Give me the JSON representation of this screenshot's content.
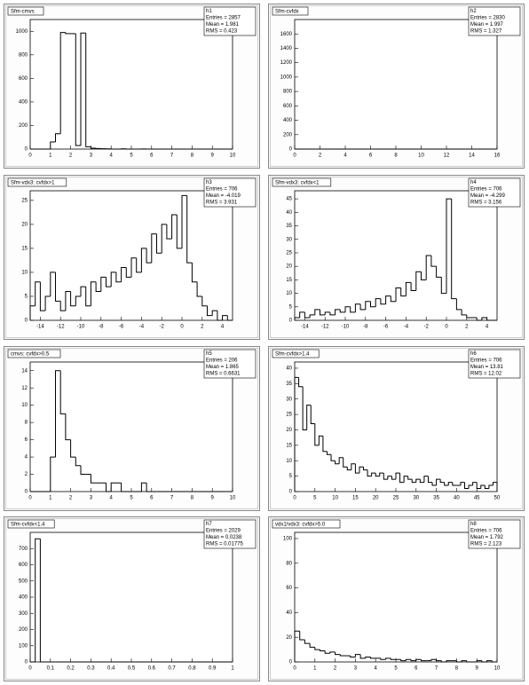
{
  "chart_data": [
    {
      "type": "histogram",
      "title": "Sfm-cmvs",
      "color": "#000000",
      "stats": [
        "h1",
        "Entries = 2857",
        "Mean = 1.981",
        "RMS = 0.423"
      ],
      "bins": [
        0,
        0.25,
        0.5,
        0.75,
        1,
        1.25,
        1.5,
        1.75,
        2,
        2.25,
        2.5,
        2.75,
        3,
        3.25,
        3.5,
        3.75,
        4,
        4.25,
        4.5,
        4.75,
        5,
        5.25,
        5.5,
        5.75,
        6,
        6.25,
        6.5,
        6.75,
        7,
        7.25,
        7.5,
        7.75,
        8,
        8.25,
        8.5,
        8.75,
        9,
        9.25,
        9.5,
        9.75,
        10
      ],
      "values": [
        0,
        0,
        0,
        0,
        60,
        130,
        990,
        980,
        980,
        30,
        985,
        20,
        8,
        5,
        3,
        2,
        0,
        0,
        2,
        0,
        0,
        0,
        1,
        0,
        0,
        0,
        0,
        0,
        0,
        0,
        0,
        0,
        0,
        0,
        0,
        0,
        0,
        0,
        0,
        0
      ],
      "xlim": [
        0,
        10
      ],
      "ylim": [
        0,
        1100
      ],
      "xticks": [
        0,
        1,
        2,
        3,
        4,
        5,
        6,
        7,
        8,
        9,
        10
      ],
      "yticks": [
        0,
        200,
        400,
        600,
        800,
        1000
      ]
    },
    {
      "type": "histogram",
      "title": "Sfm-cvfdx",
      "color": "#000000",
      "stats": [
        "h2",
        "Entries = 2830",
        "Mean = 1.997",
        "RMS = 1.327"
      ],
      "bins": [
        0,
        2,
        4,
        6,
        8,
        10,
        12,
        14,
        16
      ],
      "values": [
        0,
        0,
        0,
        0,
        0,
        0,
        0,
        0
      ],
      "xlim": [
        0,
        16
      ],
      "ylim": [
        0,
        1800
      ],
      "xticks": [
        0,
        2,
        4,
        6,
        8,
        10,
        12,
        14,
        16
      ],
      "yticks": [
        0,
        200,
        400,
        600,
        800,
        1000,
        1200,
        1400,
        1600
      ]
    },
    {
      "type": "histogram",
      "title": "Sfm-vdx3: cvfdx>1",
      "color": "#000000",
      "stats": [
        "h3",
        "Entries = 706",
        "Mean = -4.019",
        "RMS = 3.931"
      ],
      "bins": [
        -15,
        -14.5,
        -14,
        -13.5,
        -13,
        -12.5,
        -12,
        -11.5,
        -11,
        -10.5,
        -10,
        -9.5,
        -9,
        -8.5,
        -8,
        -7.5,
        -7,
        -6.5,
        -6,
        -5.5,
        -5,
        -4.5,
        -4,
        -3.5,
        -3,
        -2.5,
        -2,
        -1.5,
        -1,
        -0.5,
        0,
        0.5,
        1,
        1.5,
        2,
        2.5,
        3,
        3.5,
        4,
        4.5,
        5
      ],
      "values": [
        3,
        8,
        2,
        5,
        10,
        4,
        2,
        6,
        3,
        5,
        7,
        3,
        8,
        6,
        9,
        7,
        10,
        8,
        11,
        9,
        13,
        10,
        15,
        12,
        18,
        14,
        20,
        17,
        22,
        15,
        26,
        12,
        8,
        5,
        3,
        1,
        2,
        0,
        1,
        0
      ],
      "xlim": [
        -15,
        5
      ],
      "ylim": [
        0,
        27
      ],
      "xticks": [
        -14,
        -12,
        -10,
        -8,
        -6,
        -4,
        -2,
        0,
        2,
        4
      ],
      "yticks": [
        0,
        5,
        10,
        15,
        20,
        25
      ]
    },
    {
      "type": "histogram",
      "title": "Sfm-vdx3: cvfdx<1",
      "color": "#000000",
      "stats": [
        "h4",
        "Entries = 706",
        "Mean = -4.299",
        "RMS = 3.156"
      ],
      "bins": [
        -15,
        -14.5,
        -14,
        -13.5,
        -13,
        -12.5,
        -12,
        -11.5,
        -11,
        -10.5,
        -10,
        -9.5,
        -9,
        -8.5,
        -8,
        -7.5,
        -7,
        -6.5,
        -6,
        -5.5,
        -5,
        -4.5,
        -4,
        -3.5,
        -3,
        -2.5,
        -2,
        -1.5,
        -1,
        -0.5,
        0,
        0.5,
        1,
        1.5,
        2,
        2.5,
        3,
        3.5,
        4,
        4.5,
        5
      ],
      "values": [
        1,
        3,
        1,
        2,
        4,
        2,
        3,
        2,
        4,
        3,
        5,
        3,
        6,
        4,
        7,
        5,
        8,
        6,
        9,
        7,
        12,
        9,
        14,
        11,
        18,
        15,
        24,
        20,
        16,
        10,
        45,
        8,
        4,
        2,
        1,
        1,
        0,
        1,
        0,
        0
      ],
      "xlim": [
        -15,
        5
      ],
      "ylim": [
        0,
        48
      ],
      "xticks": [
        -14,
        -12,
        -10,
        -8,
        -6,
        -4,
        -2,
        0,
        2,
        4
      ],
      "yticks": [
        0,
        5,
        10,
        15,
        20,
        25,
        30,
        35,
        40,
        45
      ]
    },
    {
      "type": "histogram",
      "title": "cmvs: cvfdx>0.5",
      "color": "#000000",
      "stats": [
        "h5",
        "Entries = 206",
        "Mean = 1.865",
        "RMS = 0.6631"
      ],
      "bins": [
        0,
        0.25,
        0.5,
        0.75,
        1,
        1.25,
        1.5,
        1.75,
        2,
        2.25,
        2.5,
        2.75,
        3,
        3.25,
        3.5,
        3.75,
        4,
        4.25,
        4.5,
        4.75,
        5,
        5.25,
        5.5,
        5.75,
        6,
        6.25,
        6.5,
        6.75,
        7,
        7.25,
        7.5,
        7.75,
        8,
        8.25,
        8.5,
        8.75,
        9,
        9.25,
        9.5,
        9.75,
        10
      ],
      "values": [
        0,
        0,
        0,
        0,
        4,
        14,
        9,
        6,
        4,
        3,
        2,
        2,
        1,
        1,
        1,
        0,
        1,
        1,
        0,
        0,
        0,
        0,
        1,
        0,
        0,
        0,
        0,
        0,
        0,
        0,
        0,
        0,
        0,
        0,
        0,
        0,
        0,
        0,
        0,
        0
      ],
      "xlim": [
        0,
        10
      ],
      "ylim": [
        0,
        15
      ],
      "xticks": [
        0,
        1,
        2,
        3,
        4,
        5,
        6,
        7,
        8,
        9,
        10
      ],
      "yticks": [
        0,
        2,
        4,
        6,
        8,
        10,
        12,
        14
      ]
    },
    {
      "type": "histogram",
      "title": "Sfm-cvfdx>1.4",
      "color": "#000000",
      "stats": [
        "h6",
        "Entries = 706",
        "Mean = 13.81",
        "RMS = 12.02"
      ],
      "bins": [
        0,
        1,
        2,
        3,
        4,
        5,
        6,
        7,
        8,
        9,
        10,
        11,
        12,
        13,
        14,
        15,
        16,
        17,
        18,
        19,
        20,
        21,
        22,
        23,
        24,
        25,
        26,
        27,
        28,
        29,
        30,
        31,
        32,
        33,
        34,
        35,
        36,
        37,
        38,
        39,
        40,
        41,
        42,
        43,
        44,
        45,
        46,
        47,
        48,
        49,
        50
      ],
      "values": [
        37,
        34,
        20,
        28,
        22,
        15,
        18,
        13,
        12,
        10,
        9,
        11,
        8,
        7,
        9,
        6,
        8,
        7,
        5,
        6,
        5,
        6,
        4,
        5,
        4,
        6,
        3,
        5,
        4,
        3,
        4,
        3,
        5,
        3,
        2,
        4,
        3,
        2,
        3,
        2,
        2,
        3,
        1,
        2,
        3,
        1,
        2,
        1,
        2,
        3
      ],
      "xlim": [
        0,
        50
      ],
      "ylim": [
        0,
        42
      ],
      "xticks": [
        0,
        5,
        10,
        15,
        20,
        25,
        30,
        35,
        40,
        45,
        50
      ],
      "yticks": [
        0,
        5,
        10,
        15,
        20,
        25,
        30,
        35,
        40
      ]
    },
    {
      "type": "histogram",
      "title": "Sfm-cvfdx<1.4",
      "color": "#000000",
      "stats": [
        "h7",
        "Entries = 2029",
        "Mean = 0.0238",
        "RMS = 0.01775"
      ],
      "bins": [
        0,
        0.025,
        0.05,
        0.075,
        0.1,
        0.125,
        0.15,
        0.175,
        0.2,
        0.225,
        0.25,
        0.275,
        0.3,
        0.325,
        0.35,
        0.375,
        0.4,
        0.425,
        0.45,
        0.475,
        0.5,
        0.525,
        0.55,
        0.575,
        0.6,
        0.625,
        0.65,
        0.675,
        0.7,
        0.725,
        0.75,
        0.775,
        0.8,
        0.825,
        0.85,
        0.875,
        0.9,
        0.925,
        0.95,
        0.975,
        1
      ],
      "values": [
        0,
        760,
        0,
        0,
        0,
        0,
        0,
        0,
        0,
        0,
        0,
        0,
        0,
        0,
        0,
        0,
        0,
        0,
        0,
        0,
        0,
        0,
        0,
        0,
        0,
        0,
        0,
        0,
        0,
        0,
        0,
        0,
        0,
        0,
        0,
        0,
        0,
        0,
        0,
        0
      ],
      "xlim": [
        0,
        1
      ],
      "ylim": [
        0,
        800
      ],
      "xticks": [
        0,
        0.1,
        0.2,
        0.3,
        0.4,
        0.5,
        0.6,
        0.7,
        0.8,
        0.9,
        1
      ],
      "yticks": [
        0,
        100,
        200,
        300,
        400,
        500,
        600,
        700
      ]
    },
    {
      "type": "histogram",
      "title": "vdx1/vdx3: cvfdx>5.0",
      "color": "#000000",
      "stats": [
        "h8",
        "Entries = 706",
        "Mean = 1.792",
        "RMS = 2.123"
      ],
      "bins": [
        0,
        0.25,
        0.5,
        0.75,
        1,
        1.25,
        1.5,
        1.75,
        2,
        2.25,
        2.5,
        2.75,
        3,
        3.25,
        3.5,
        3.75,
        4,
        4.25,
        4.5,
        4.75,
        5,
        5.25,
        5.5,
        5.75,
        6,
        6.25,
        6.5,
        6.75,
        7,
        7.25,
        7.5,
        7.75,
        8,
        8.25,
        8.5,
        8.75,
        9,
        9.25,
        9.5,
        9.75,
        10
      ],
      "values": [
        25,
        18,
        15,
        12,
        10,
        9,
        7,
        8,
        6,
        5,
        5,
        4,
        6,
        3,
        4,
        3,
        3,
        2,
        3,
        2,
        2,
        1,
        2,
        1,
        2,
        1,
        1,
        2,
        1,
        0,
        1,
        1,
        0,
        1,
        0,
        0,
        1,
        0,
        1,
        0
      ],
      "xlim": [
        0,
        10
      ],
      "ylim": [
        0,
        105
      ],
      "xticks": [
        0,
        1,
        2,
        3,
        4,
        5,
        6,
        7,
        8,
        9,
        10
      ],
      "yticks": [
        0,
        20,
        40,
        60,
        80,
        100
      ]
    }
  ]
}
